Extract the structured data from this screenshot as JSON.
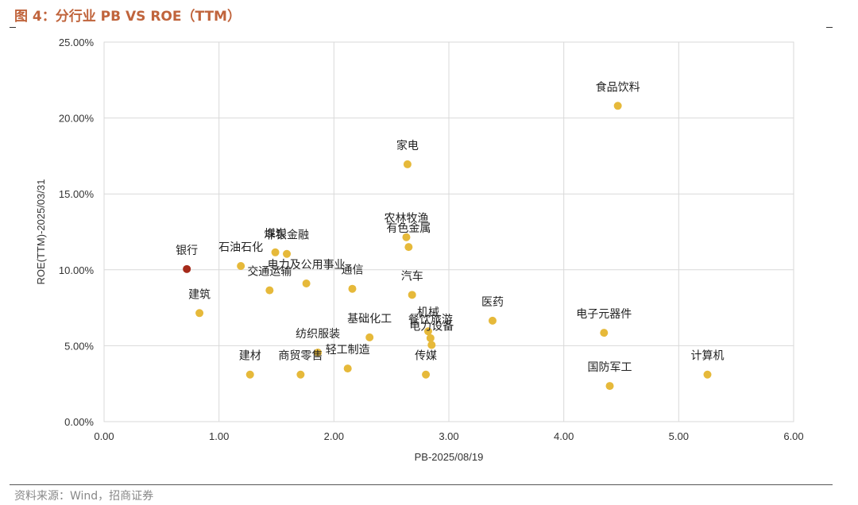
{
  "header": {
    "title": "图 4：分行业 PB VS ROE（TTM）"
  },
  "footer": {
    "source": "资料来源：Wind，招商证券"
  },
  "colors": {
    "point": "#e6b93a",
    "highlight": "#a52a1a",
    "grid": "#d9d9d9"
  },
  "chart_data": {
    "type": "scatter",
    "title": "分行业 PB VS ROE（TTM）",
    "xlabel": "PB-2025/08/19",
    "ylabel": "ROE(TTM)-2025/03/31",
    "xlim": [
      0,
      6
    ],
    "ylim": [
      0,
      0.25
    ],
    "xticks": [
      "0.00",
      "1.00",
      "2.00",
      "3.00",
      "4.00",
      "5.00",
      "6.00"
    ],
    "yticks": [
      "0.00%",
      "5.00%",
      "10.00%",
      "15.00%",
      "20.00%",
      "25.00%"
    ],
    "grid": true,
    "points": [
      {
        "name": "银行",
        "x": 0.72,
        "y": 0.1005,
        "highlight": true
      },
      {
        "name": "建筑",
        "x": 0.83,
        "y": 0.0715
      },
      {
        "name": "石油石化",
        "x": 1.19,
        "y": 0.1025
      },
      {
        "name": "非银金融",
        "x": 1.59,
        "y": 0.1105
      },
      {
        "name": "煤炭",
        "x": 1.49,
        "y": 0.1115
      },
      {
        "name": "交通运输",
        "x": 1.44,
        "y": 0.0865
      },
      {
        "name": "电力及公用事业",
        "x": 1.76,
        "y": 0.091
      },
      {
        "name": "通信",
        "x": 2.16,
        "y": 0.0875
      },
      {
        "name": "建材",
        "x": 1.27,
        "y": 0.031
      },
      {
        "name": "商贸零售",
        "x": 1.71,
        "y": 0.031
      },
      {
        "name": "纺织服装",
        "x": 1.86,
        "y": 0.0455
      },
      {
        "name": "轻工制造",
        "x": 2.12,
        "y": 0.035
      },
      {
        "name": "基础化工",
        "x": 2.31,
        "y": 0.0555
      },
      {
        "name": "家电",
        "x": 2.64,
        "y": 0.1695
      },
      {
        "name": "农林牧渔",
        "x": 2.63,
        "y": 0.1215
      },
      {
        "name": "有色金属",
        "x": 2.65,
        "y": 0.115
      },
      {
        "name": "汽车",
        "x": 2.68,
        "y": 0.0835
      },
      {
        "name": "机械",
        "x": 2.82,
        "y": 0.0595
      },
      {
        "name": "餐饮旅游",
        "x": 2.84,
        "y": 0.055
      },
      {
        "name": "电力设备",
        "x": 2.85,
        "y": 0.0505
      },
      {
        "name": "传媒",
        "x": 2.8,
        "y": 0.031
      },
      {
        "name": "医药",
        "x": 3.38,
        "y": 0.0665
      },
      {
        "name": "食品饮料",
        "x": 4.47,
        "y": 0.208
      },
      {
        "name": "电子元器件",
        "x": 4.35,
        "y": 0.0585
      },
      {
        "name": "国防军工",
        "x": 4.4,
        "y": 0.0235
      },
      {
        "name": "计算机",
        "x": 5.25,
        "y": 0.031
      }
    ]
  }
}
